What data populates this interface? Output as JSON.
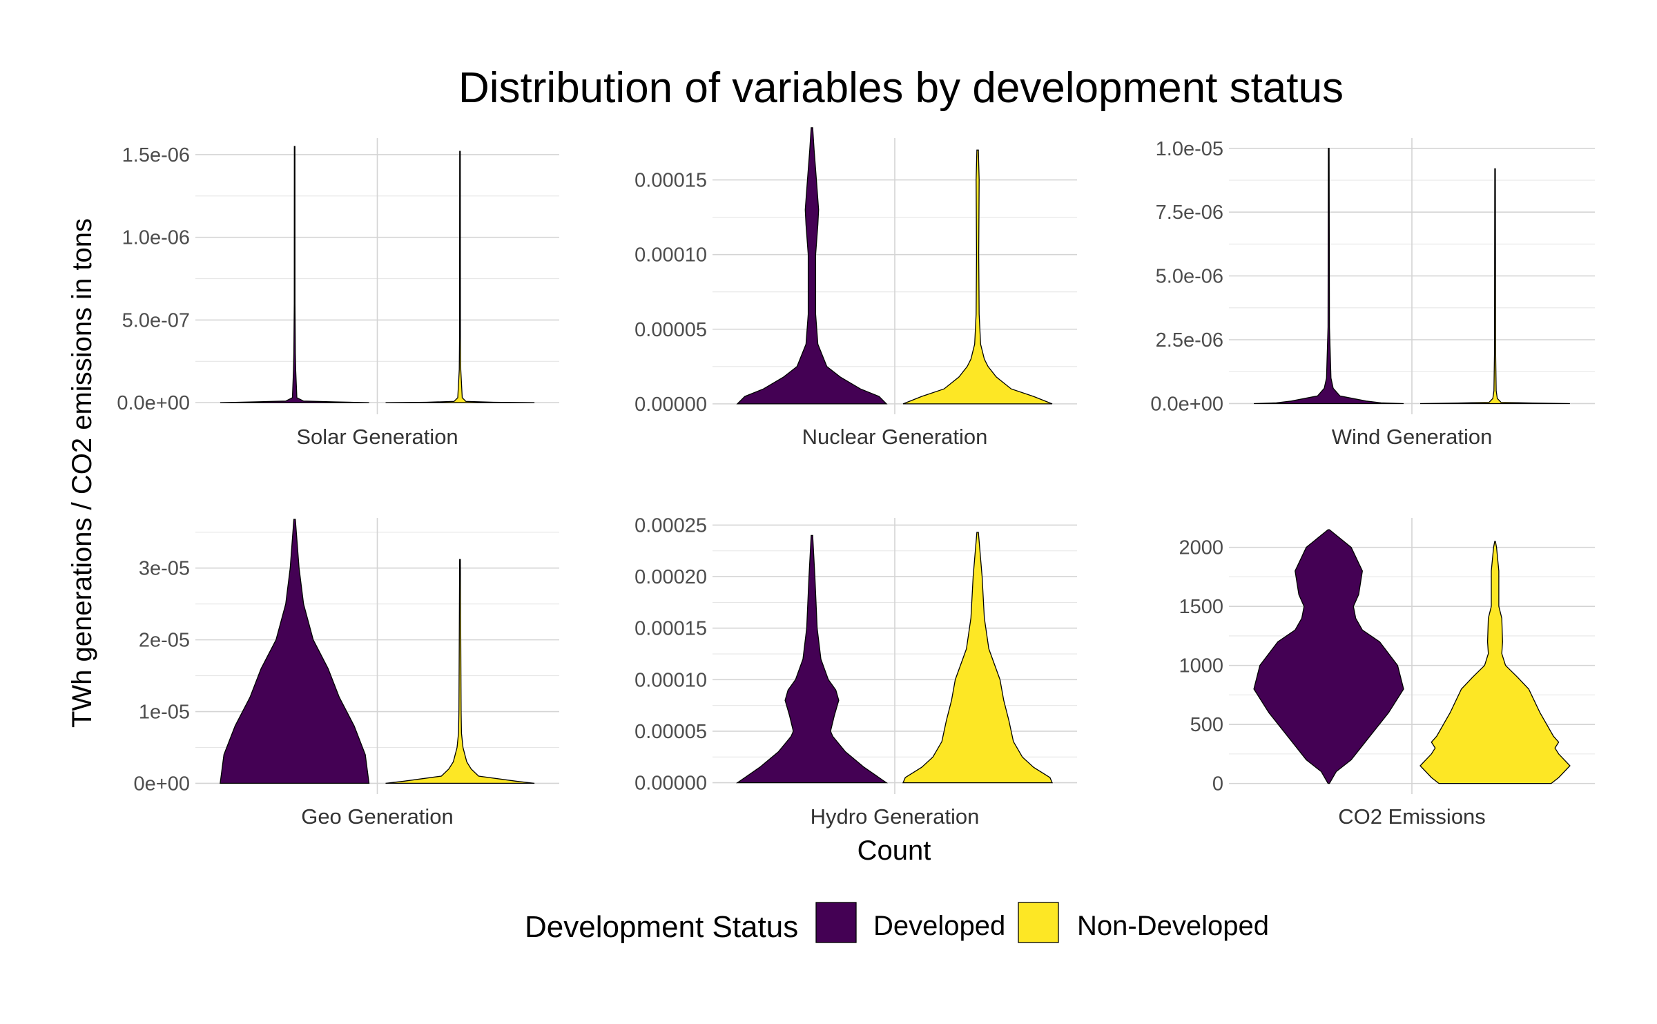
{
  "chart_data": {
    "type": "violin",
    "title": "Distribution of variables by development status",
    "xlabel": "Count",
    "ylabel": "TWh generations / CO2 emissions in tons",
    "grid": true,
    "legend": {
      "title": "Development Status",
      "position": "bottom",
      "entries": [
        {
          "name": "Developed",
          "color": "#440154"
        },
        {
          "name": "Non-Developed",
          "color": "#FDE725"
        }
      ]
    },
    "groups": [
      "Developed",
      "Non-Developed"
    ],
    "colors": {
      "Developed": "#440154",
      "Non-Developed": "#FDE725"
    },
    "facets": [
      {
        "name": "Solar Generation",
        "ylim": [
          -7e-08,
          1.6e-06
        ],
        "ticks": [
          {
            "v": 0,
            "label": "0.0e+00"
          },
          {
            "v": 5e-07,
            "label": "5.0e-07"
          },
          {
            "v": 1e-06,
            "label": "1.0e-06"
          },
          {
            "v": 1.5e-06,
            "label": "1.5e-06"
          }
        ],
        "minor": [
          2.5e-07,
          7.5e-07,
          1.25e-06
        ],
        "violins": {
          "Developed": {
            "max": 1.55e-06,
            "profile": [
              [
                0,
                1.0
              ],
              [
                5e-09,
                0.55
              ],
              [
                1e-08,
                0.12
              ],
              [
                3e-08,
                0.03
              ],
              [
                2e-07,
                0.015
              ],
              [
                3e-07,
                0.01
              ],
              [
                6e-07,
                0.005
              ],
              [
                1.55e-06,
                0.004
              ]
            ]
          },
          "Non-Developed": {
            "max": 1.52e-06,
            "profile": [
              [
                0,
                1.0
              ],
              [
                3e-09,
                0.45
              ],
              [
                8e-09,
                0.08
              ],
              [
                3e-08,
                0.03
              ],
              [
                2e-07,
                0.01
              ],
              [
                4e-07,
                0.006
              ],
              [
                1.52e-06,
                0.004
              ]
            ]
          }
        }
      },
      {
        "name": "Nuclear Generation",
        "ylim": [
          -7e-06,
          0.000178
        ],
        "ticks": [
          {
            "v": 0,
            "label": "0.00000"
          },
          {
            "v": 5e-05,
            "label": "0.00005"
          },
          {
            "v": 0.0001,
            "label": "0.00010"
          },
          {
            "v": 0.00015,
            "label": "0.00015"
          }
        ],
        "minor": [
          2.5e-05,
          7.5e-05,
          0.000125
        ],
        "violins": {
          "Developed": {
            "max": 0.000185,
            "profile": [
              [
                0,
                1.0
              ],
              [
                5e-06,
                0.9
              ],
              [
                1e-05,
                0.65
              ],
              [
                1.8e-05,
                0.38
              ],
              [
                2.5e-05,
                0.2
              ],
              [
                4e-05,
                0.08
              ],
              [
                6e-05,
                0.05
              ],
              [
                0.0001,
                0.05
              ],
              [
                0.00012,
                0.08
              ],
              [
                0.00013,
                0.09
              ],
              [
                0.00015,
                0.06
              ],
              [
                0.00017,
                0.03
              ],
              [
                0.000185,
                0.01
              ]
            ]
          },
          "Non-Developed": {
            "max": 0.00017,
            "profile": [
              [
                0,
                1.0
              ],
              [
                5e-06,
                0.75
              ],
              [
                1e-05,
                0.45
              ],
              [
                1.8e-05,
                0.25
              ],
              [
                2.5e-05,
                0.14
              ],
              [
                3e-05,
                0.09
              ],
              [
                4e-05,
                0.04
              ],
              [
                6e-05,
                0.02
              ],
              [
                0.0001,
                0.015
              ],
              [
                0.00015,
                0.02
              ],
              [
                0.00017,
                0.01
              ]
            ]
          }
        }
      },
      {
        "name": "Wind Generation",
        "ylim": [
          -4.2e-07,
          1.04e-05
        ],
        "ticks": [
          {
            "v": 0,
            "label": "0.0e+00"
          },
          {
            "v": 2.5e-06,
            "label": "2.5e-06"
          },
          {
            "v": 5e-06,
            "label": "5.0e-06"
          },
          {
            "v": 7.5e-06,
            "label": "7.5e-06"
          },
          {
            "v": 1e-05,
            "label": "1.0e-05"
          }
        ],
        "minor": [
          1.25e-06,
          3.75e-06,
          6.25e-06,
          8.75e-06
        ],
        "violins": {
          "Developed": {
            "max": 1e-05,
            "profile": [
              [
                0,
                1.0
              ],
              [
                3e-08,
                0.7
              ],
              [
                1e-07,
                0.5
              ],
              [
                3e-07,
                0.15
              ],
              [
                6e-07,
                0.06
              ],
              [
                1e-06,
                0.03
              ],
              [
                3e-06,
                0.01
              ],
              [
                1e-05,
                0.005
              ]
            ]
          },
          "Non-Developed": {
            "max": 9.2e-06,
            "profile": [
              [
                0,
                1.0
              ],
              [
                2e-08,
                0.5
              ],
              [
                5e-08,
                0.08
              ],
              [
                2e-07,
                0.03
              ],
              [
                5e-07,
                0.015
              ],
              [
                2e-06,
                0.008
              ],
              [
                9.2e-06,
                0.004
              ]
            ]
          }
        }
      },
      {
        "name": "Geo Generation",
        "ylim": [
          -1.5e-06,
          3.7e-05
        ],
        "ticks": [
          {
            "v": 0,
            "label": "0e+00"
          },
          {
            "v": 1e-05,
            "label": "1e-05"
          },
          {
            "v": 2e-05,
            "label": "2e-05"
          },
          {
            "v": 3e-05,
            "label": "3e-05"
          }
        ],
        "minor": [
          5e-06,
          1.5e-05,
          2.5e-05,
          3.5e-05
        ],
        "violins": {
          "Developed": {
            "max": 3.68e-05,
            "profile": [
              [
                0,
                1.0
              ],
              [
                4e-06,
                0.95
              ],
              [
                8e-06,
                0.8
              ],
              [
                1.2e-05,
                0.6
              ],
              [
                1.6e-05,
                0.45
              ],
              [
                2e-05,
                0.25
              ],
              [
                2.5e-05,
                0.12
              ],
              [
                3e-05,
                0.06
              ],
              [
                3.68e-05,
                0.01
              ]
            ]
          },
          "Non-Developed": {
            "max": 3.12e-05,
            "profile": [
              [
                0,
                1.0
              ],
              [
                3e-07,
                0.75
              ],
              [
                1e-06,
                0.25
              ],
              [
                2e-06,
                0.15
              ],
              [
                3e-06,
                0.09
              ],
              [
                5e-06,
                0.04
              ],
              [
                7e-06,
                0.02
              ],
              [
                1e-05,
                0.015
              ],
              [
                2e-05,
                0.01
              ],
              [
                3.12e-05,
                0.005
              ]
            ]
          }
        }
      },
      {
        "name": "Hydro Generation",
        "ylim": [
          -1.1e-05,
          0.000257
        ],
        "ticks": [
          {
            "v": 0,
            "label": "0.00000"
          },
          {
            "v": 5e-05,
            "label": "0.00005"
          },
          {
            "v": 0.0001,
            "label": "0.00010"
          },
          {
            "v": 0.00015,
            "label": "0.00015"
          },
          {
            "v": 0.0002,
            "label": "0.00020"
          },
          {
            "v": 0.00025,
            "label": "0.00025"
          }
        ],
        "minor": [
          2.5e-05,
          7.5e-05,
          0.000125,
          0.000175,
          0.000225
        ],
        "violins": {
          "Developed": {
            "max": 0.00024,
            "profile": [
              [
                0,
                1.0
              ],
              [
                5e-06,
                0.9
              ],
              [
                1.5e-05,
                0.7
              ],
              [
                3e-05,
                0.45
              ],
              [
                4.5e-05,
                0.28
              ],
              [
                5e-05,
                0.25
              ],
              [
                6.5e-05,
                0.3
              ],
              [
                8e-05,
                0.36
              ],
              [
                9e-05,
                0.32
              ],
              [
                0.0001,
                0.22
              ],
              [
                0.00012,
                0.12
              ],
              [
                0.00015,
                0.07
              ],
              [
                0.0002,
                0.04
              ],
              [
                0.00024,
                0.01
              ]
            ]
          },
          "Non-Developed": {
            "max": 0.000243,
            "profile": [
              [
                0,
                1.0
              ],
              [
                5e-06,
                0.97
              ],
              [
                1.5e-05,
                0.75
              ],
              [
                2.5e-05,
                0.6
              ],
              [
                4e-05,
                0.48
              ],
              [
                6e-05,
                0.42
              ],
              [
                8e-05,
                0.35
              ],
              [
                0.0001,
                0.3
              ],
              [
                0.00011,
                0.25
              ],
              [
                0.00013,
                0.15
              ],
              [
                0.00016,
                0.09
              ],
              [
                0.0002,
                0.06
              ],
              [
                0.000243,
                0.01
              ]
            ]
          }
        }
      },
      {
        "name": "CO2 Emissions",
        "ylim": [
          -90,
          2250
        ],
        "ticks": [
          {
            "v": 0,
            "label": "0"
          },
          {
            "v": 500,
            "label": "500"
          },
          {
            "v": 1000,
            "label": "1000"
          },
          {
            "v": 1500,
            "label": "1500"
          },
          {
            "v": 2000,
            "label": "2000"
          }
        ],
        "minor": [
          250,
          750,
          1250,
          1750
        ],
        "violins": {
          "Developed": {
            "max": 2150,
            "profile": [
              [
                0,
                0.01
              ],
              [
                100,
                0.1
              ],
              [
                200,
                0.3
              ],
              [
                400,
                0.55
              ],
              [
                600,
                0.8
              ],
              [
                800,
                1.0
              ],
              [
                1000,
                0.92
              ],
              [
                1200,
                0.68
              ],
              [
                1300,
                0.45
              ],
              [
                1400,
                0.36
              ],
              [
                1500,
                0.33
              ],
              [
                1600,
                0.4
              ],
              [
                1800,
                0.45
              ],
              [
                2000,
                0.3
              ],
              [
                2150,
                0.01
              ]
            ]
          },
          "Non-Developed": {
            "max": 2050,
            "profile": [
              [
                0,
                0.75
              ],
              [
                50,
                0.85
              ],
              [
                150,
                1.0
              ],
              [
                250,
                0.85
              ],
              [
                300,
                0.8
              ],
              [
                350,
                0.85
              ],
              [
                400,
                0.78
              ],
              [
                600,
                0.6
              ],
              [
                800,
                0.45
              ],
              [
                900,
                0.3
              ],
              [
                1000,
                0.14
              ],
              [
                1100,
                0.09
              ],
              [
                1200,
                0.1
              ],
              [
                1400,
                0.09
              ],
              [
                1500,
                0.05
              ],
              [
                1800,
                0.05
              ],
              [
                2000,
                0.02
              ],
              [
                2050,
                0.005
              ]
            ]
          }
        }
      }
    ]
  }
}
